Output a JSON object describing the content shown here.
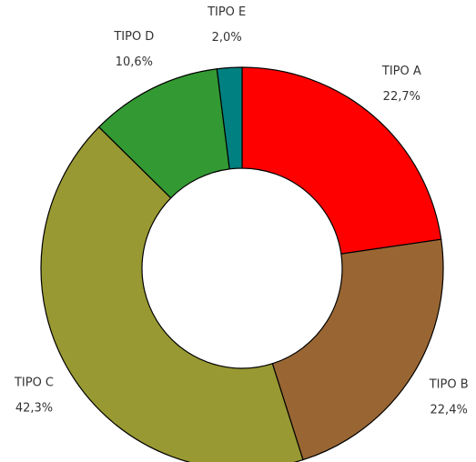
{
  "chart_data": {
    "type": "donut",
    "categories": [
      "TIPO A",
      "TIPO B",
      "TIPO C",
      "TIPO D",
      "TIPO E"
    ],
    "values": [
      22.7,
      22.4,
      42.3,
      10.6,
      2.0
    ],
    "value_labels": [
      "22,7%",
      "22,4%",
      "42,3%",
      "10,6%",
      "2,0%"
    ],
    "colors": [
      "#ff0000",
      "#996633",
      "#999933",
      "#339933",
      "#008080"
    ]
  }
}
